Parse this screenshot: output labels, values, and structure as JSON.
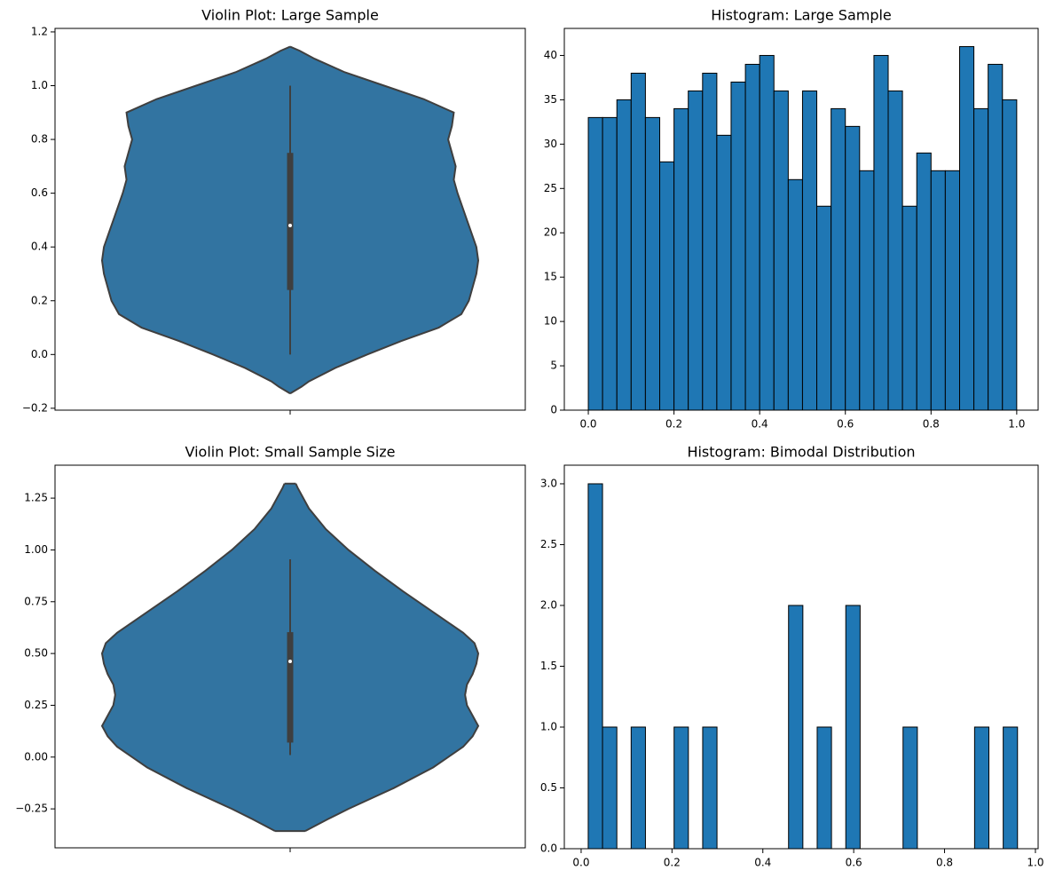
{
  "chart_data": [
    {
      "type": "violin",
      "title": "Violin Plot: Large Sample",
      "ylim": [
        -0.207,
        1.213
      ],
      "yticks": [
        {
          "value": -0.2,
          "label": "−0.2"
        },
        {
          "value": 0,
          "label": "0.0"
        },
        0.2,
        0.4,
        0.6,
        0.8,
        {
          "value": 1,
          "label": "1.0"
        },
        1.2
      ],
      "color": "#3274a1",
      "box": {
        "whisker_low": 0,
        "q1": 0.24,
        "median": 0.48,
        "q3": 0.75,
        "whisker_high": 1.0
      },
      "density": {
        "y": [
          -0.145,
          -0.12,
          -0.1,
          -0.05,
          0,
          0.05,
          0.1,
          0.15,
          0.2,
          0.3,
          0.35,
          0.4,
          0.5,
          0.6,
          0.65,
          0.7,
          0.75,
          0.8,
          0.85,
          0.9,
          0.95,
          1.0,
          1.05,
          1.1,
          1.13,
          1.145
        ],
        "values": [
          0,
          0.06,
          0.1,
          0.24,
          0.41,
          0.59,
          0.79,
          0.91,
          0.95,
          0.99,
          1,
          0.99,
          0.94,
          0.89,
          0.87,
          0.88,
          0.86,
          0.84,
          0.86,
          0.87,
          0.71,
          0.5,
          0.29,
          0.13,
          0.05,
          0
        ]
      }
    },
    {
      "type": "histogram",
      "title": "Histogram: Large Sample",
      "xlim": [
        -0.056,
        1.05
      ],
      "ylim": [
        0,
        43.05
      ],
      "xticks": [
        {
          "value": 0,
          "label": "0.0"
        },
        0.2,
        0.4,
        0.6,
        0.8,
        {
          "value": 1,
          "label": "1.0"
        }
      ],
      "yticks": [
        0,
        5,
        10,
        15,
        20,
        25,
        30,
        35,
        40
      ],
      "color": "#1f77b4",
      "bins": [
        0,
        0.0333,
        0.0667,
        0.1,
        0.1333,
        0.1667,
        0.2,
        0.2333,
        0.2667,
        0.3,
        0.3333,
        0.3667,
        0.4,
        0.4333,
        0.4667,
        0.5,
        0.5333,
        0.5667,
        0.6,
        0.6333,
        0.6667,
        0.7,
        0.7333,
        0.7667,
        0.8,
        0.8333,
        0.8667,
        0.9,
        0.9333,
        0.9667,
        1
      ],
      "counts": [
        33,
        33,
        35,
        38,
        33,
        28,
        34,
        36,
        38,
        31,
        37,
        39,
        40,
        36,
        26,
        36,
        23,
        34,
        32,
        27,
        40,
        36,
        23,
        29,
        27,
        27,
        41,
        34,
        39,
        35
      ]
    },
    {
      "type": "violin",
      "title": "Violin Plot: Small Sample Size",
      "ylim": [
        -0.438,
        1.409
      ],
      "yticks": [
        {
          "value": -0.25,
          "label": "−0.25"
        },
        {
          "value": 0,
          "label": "0.00"
        },
        0.25,
        {
          "value": 0.5,
          "label": "0.50"
        },
        0.75,
        {
          "value": 1,
          "label": "1.00"
        },
        1.25
      ],
      "color": "#3274a1",
      "box": {
        "whisker_low": 0.01,
        "q1": 0.07,
        "median": 0.462,
        "q3": 0.603,
        "whisker_high": 0.955
      },
      "density": {
        "y": [
          -0.357,
          -0.3,
          -0.25,
          -0.15,
          -0.05,
          0,
          0.05,
          0.1,
          0.15,
          0.2,
          0.25,
          0.3,
          0.35,
          0.4,
          0.45,
          0.5,
          0.55,
          0.6,
          0.7,
          0.8,
          0.9,
          1.0,
          1.1,
          1.2,
          1.3,
          1.32
        ],
        "values": [
          0.08,
          0.2,
          0.31,
          0.55,
          0.76,
          0.84,
          0.92,
          0.97,
          1,
          0.97,
          0.94,
          0.93,
          0.94,
          0.97,
          0.99,
          1,
          0.98,
          0.92,
          0.76,
          0.6,
          0.45,
          0.31,
          0.19,
          0.1,
          0.04,
          0.03
        ]
      }
    },
    {
      "type": "histogram",
      "title": "Histogram: Bimodal Distribution",
      "xlim": [
        -0.037,
        1.006
      ],
      "ylim": [
        0,
        3.153
      ],
      "xticks": [
        {
          "value": 0,
          "label": "0.0"
        },
        0.2,
        0.4,
        0.6,
        0.8,
        {
          "value": 1,
          "label": "1.0"
        }
      ],
      "yticks": [
        {
          "value": 0,
          "label": "0.0"
        },
        0.5,
        {
          "value": 1,
          "label": "1.0"
        },
        1.5,
        {
          "value": 2,
          "label": "2.0"
        },
        2.5,
        {
          "value": 3,
          "label": "3.0"
        }
      ],
      "color": "#1f77b4",
      "bins": [
        0.0156,
        0.0471,
        0.0786,
        0.1101,
        0.1416,
        0.1731,
        0.2046,
        0.2361,
        0.2676,
        0.2991,
        0.3306,
        0.3621,
        0.3936,
        0.4251,
        0.4566,
        0.4881,
        0.5196,
        0.5511,
        0.5826,
        0.6141,
        0.6456,
        0.6771,
        0.7086,
        0.7401,
        0.7716,
        0.8031,
        0.8346,
        0.8661,
        0.8976,
        0.9291,
        0.9606
      ],
      "counts": [
        3,
        1,
        0,
        1,
        0,
        0,
        1,
        0,
        1,
        0,
        0,
        0,
        0,
        0,
        2,
        0,
        1,
        0,
        2,
        0,
        0,
        0,
        1,
        0,
        0,
        0,
        0,
        1,
        0,
        1
      ]
    }
  ]
}
